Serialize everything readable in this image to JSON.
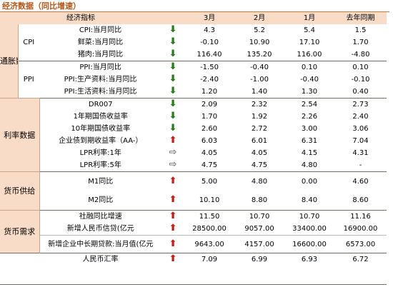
{
  "title": "经济数据（同比增速）",
  "header": {
    "indicator": "经济指标",
    "c1": "3月",
    "c2": "2月",
    "c3": "1月",
    "c4": "去年同期"
  },
  "groups": {
    "tongzhangshuju": "通胀数据",
    "lilvshuju": "利率数据",
    "huobigongji": "货币供给",
    "huobixuqiu": "货币需求",
    "cpi": "CPI",
    "ppi": "PPI"
  },
  "rows": [
    {
      "name": "CPI:当月同比",
      "arrow": "down",
      "v": [
        "4.3",
        "5.2",
        "5.4",
        "1.5"
      ]
    },
    {
      "name": "鲜菜:当月同比",
      "arrow": "down",
      "v": [
        "-0.10",
        "10.90",
        "17.10",
        "1.70"
      ]
    },
    {
      "name": "猪肉:当月同比",
      "arrow": "down",
      "v": [
        "116.40",
        "135.20",
        "116.00",
        "-4.80"
      ]
    },
    {
      "name": "PPI:当月同比",
      "arrow": "down",
      "v": [
        "-1.50",
        "-0.40",
        "0.10",
        "0.10"
      ]
    },
    {
      "name": "PPI:生产资料:当月同比",
      "arrow": "down",
      "v": [
        "-2.40",
        "-1.00",
        "-0.40",
        "-0.10"
      ]
    },
    {
      "name": "PPI:生活资料:当月同比",
      "arrow": "down",
      "v": [
        "1.20",
        "1.40",
        "1.30",
        "0.40"
      ]
    },
    {
      "name": "DR007",
      "arrow": "down",
      "v": [
        "2.09",
        "2.32",
        "2.54",
        "2.73"
      ]
    },
    {
      "name": "1年期国债收益率",
      "arrow": "down",
      "v": [
        "1.70",
        "1.92",
        "2.26",
        "2.40"
      ]
    },
    {
      "name": "10年期国债收益率",
      "arrow": "down",
      "v": [
        "2.60",
        "2.72",
        "3.00",
        "3.06"
      ]
    },
    {
      "name": "企业债到期收益率（AA-）",
      "arrow": "up",
      "v": [
        "6.03",
        "6.01",
        "6.31",
        "7.04"
      ]
    },
    {
      "name": "LPR利率:1年",
      "arrow": "flat",
      "v": [
        "4.05",
        "4.05",
        "4.15",
        "4.31"
      ]
    },
    {
      "name": "LPR利率:5年",
      "arrow": "flat",
      "v": [
        "4.75",
        "4.75",
        "4.80",
        "-"
      ]
    },
    {
      "name": "M1同比",
      "arrow": "up",
      "v": [
        "5.00",
        "4.80",
        "0.00",
        "4.60"
      ]
    },
    {
      "name": "M2同比",
      "arrow": "up",
      "v": [
        "10.10",
        "8.80",
        "8.40",
        "8.60"
      ]
    },
    {
      "name": "社融同比增速",
      "arrow": "up",
      "v": [
        "11.50",
        "10.70",
        "10.70",
        "11.16"
      ]
    },
    {
      "name": "新增人民币信贷(亿元",
      "arrow": "up",
      "v": [
        "28500.00",
        "9057.00",
        "33400.00",
        "16900.00"
      ]
    },
    {
      "name": "新增企业中长期贷款:当月值(亿元",
      "arrow": "up",
      "v": [
        "9643.00",
        "4157.00",
        "16600.00",
        "6573.00"
      ]
    },
    {
      "name": "人民币汇率",
      "arrow": "up",
      "v": [
        "7.09",
        "6.99",
        "6.93",
        "6.72"
      ]
    }
  ],
  "colors": {
    "header_bg": "#f8dcc8",
    "title": "#b3561a",
    "down": "#2a7a1e",
    "up": "#c0201b",
    "flat": "#6e6e6e"
  },
  "icons": {
    "down": "arrow-down-icon",
    "up": "arrow-up-icon",
    "flat": "arrow-right-icon"
  }
}
